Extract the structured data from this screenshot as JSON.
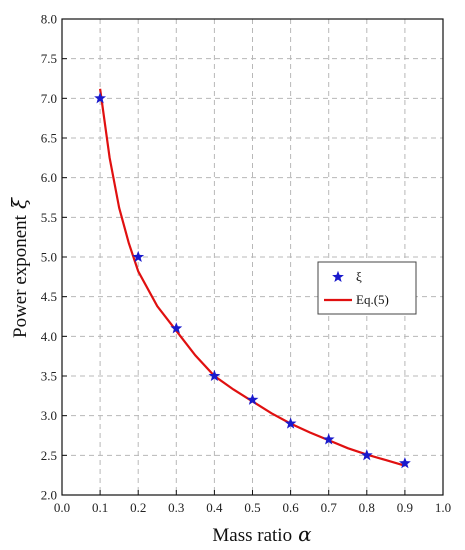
{
  "chart_data": {
    "type": "scatter",
    "title": "",
    "xlabel": "Mass ratio",
    "xlabel_symbol": "α",
    "ylabel": "Power exponent",
    "ylabel_symbol": "ξ",
    "xlim": [
      0.0,
      1.0
    ],
    "ylim": [
      2.0,
      8.0
    ],
    "xticks": [
      "0.0",
      "0.1",
      "0.2",
      "0.3",
      "0.4",
      "0.5",
      "0.6",
      "0.7",
      "0.8",
      "0.9",
      "1.0"
    ],
    "yticks": [
      "2.0",
      "2.5",
      "3.0",
      "3.5",
      "4.0",
      "4.5",
      "5.0",
      "5.5",
      "6.0",
      "6.5",
      "7.0",
      "7.5",
      "8.0"
    ],
    "grid": true,
    "legend_position": "right",
    "series": [
      {
        "name": "ξ",
        "kind": "marker",
        "marker": "star",
        "color": "#1a1acc",
        "x": [
          0.1,
          0.2,
          0.3,
          0.4,
          0.5,
          0.6,
          0.7,
          0.8,
          0.9
        ],
        "y": [
          7.0,
          5.0,
          4.1,
          3.5,
          3.2,
          2.9,
          2.7,
          2.5,
          2.4
        ]
      },
      {
        "name": "Eq.(5)",
        "kind": "line",
        "color": "#e01010",
        "x": [
          0.1,
          0.125,
          0.15,
          0.175,
          0.2,
          0.25,
          0.3,
          0.35,
          0.4,
          0.45,
          0.5,
          0.55,
          0.6,
          0.65,
          0.7,
          0.75,
          0.8,
          0.85,
          0.9
        ],
        "y": [
          7.12,
          6.25,
          5.62,
          5.18,
          4.82,
          4.38,
          4.07,
          3.76,
          3.5,
          3.33,
          3.18,
          3.03,
          2.9,
          2.79,
          2.69,
          2.59,
          2.51,
          2.44,
          2.37
        ]
      }
    ]
  }
}
